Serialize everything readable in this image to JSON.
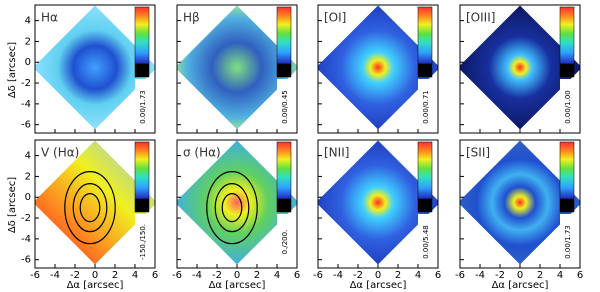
{
  "chart_data": {
    "type": "map",
    "xlabel": "Δα [arcsec]",
    "ylabel": "Δδ [arcsec]",
    "xlim": [
      -6,
      6
    ],
    "ylim": [
      -6.8,
      5.5
    ],
    "xticks": [
      -6,
      -4,
      -2,
      0,
      2,
      4,
      6
    ],
    "yticks": [
      -6,
      -4,
      -2,
      0,
      2,
      4
    ],
    "panels": [
      {
        "title": "Hα",
        "colorbar_label": "0.00/1.73"
      },
      {
        "title": "Hβ",
        "colorbar_label": "0.00/0.45"
      },
      {
        "title": "[OI]",
        "colorbar_label": "0.00/0.71"
      },
      {
        "title": "[OIII]",
        "colorbar_label": "0.00/1.00"
      },
      {
        "title": "V (Hα)",
        "colorbar_label": "-150./150."
      },
      {
        "title": "σ (Hα)",
        "colorbar_label": "0./200."
      },
      {
        "title": "[NII]",
        "colorbar_label": "0.00/5.48"
      },
      {
        "title": "[SII]",
        "colorbar_label": "0.00/1.73"
      }
    ]
  }
}
